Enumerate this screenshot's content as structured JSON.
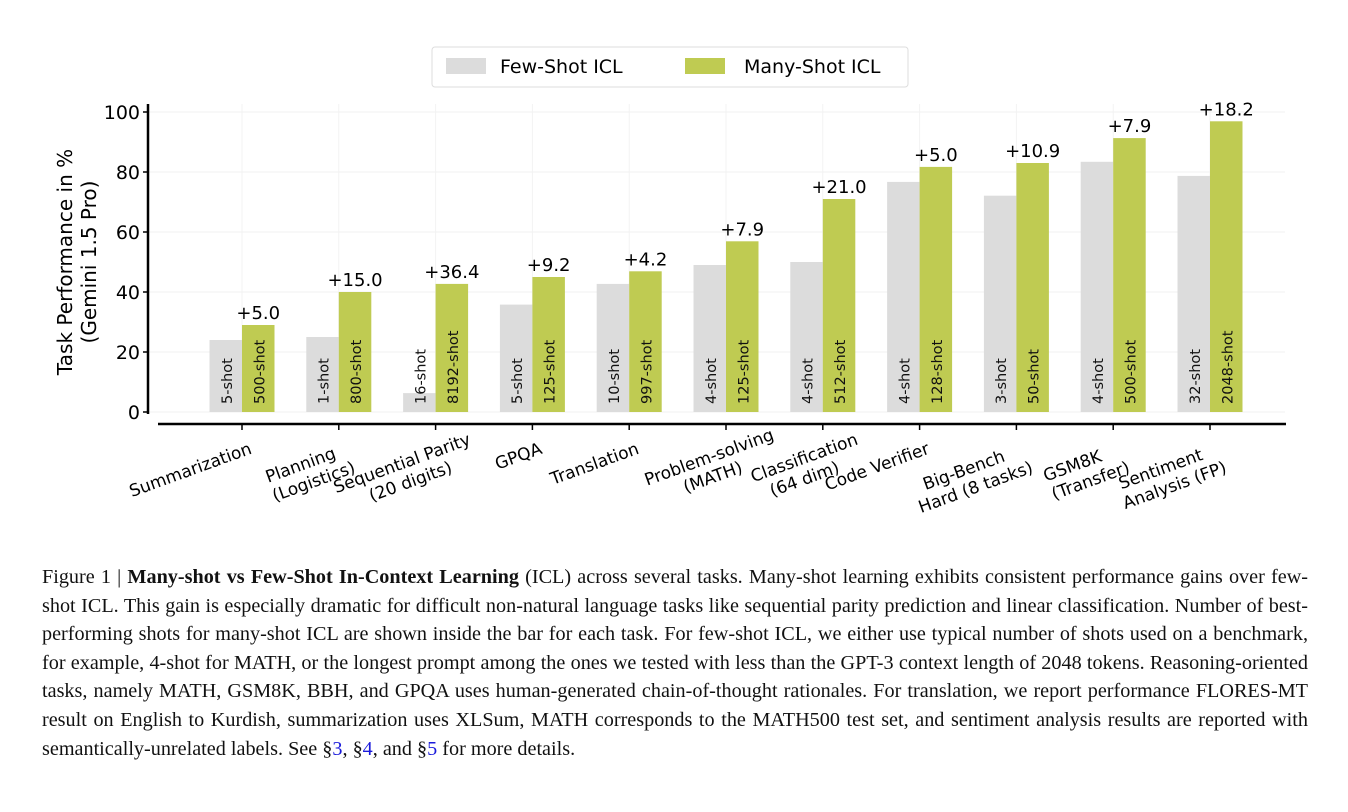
{
  "chart_data": {
    "type": "bar",
    "ylabel": [
      "Task Performance in %",
      "(Gemini 1.5 Pro)"
    ],
    "ylim": [
      0,
      100
    ],
    "yticks": [
      0,
      20,
      40,
      60,
      80,
      100
    ],
    "grid": true,
    "legend_placement": "top-center",
    "categories": [
      [
        "Summarization"
      ],
      [
        "Planning",
        "(Logistics)"
      ],
      [
        "Sequential Parity",
        "(20 digits)"
      ],
      [
        "GPQA"
      ],
      [
        "Translation"
      ],
      [
        "Problem-solving",
        "(MATH)"
      ],
      [
        "Classification",
        "(64 dim)"
      ],
      [
        "Code Verifier"
      ],
      [
        "Big-Bench",
        "Hard (8 tasks)"
      ],
      [
        "GSM8K",
        "(Transfer)"
      ],
      [
        "Sentiment",
        "Analysis (FP)"
      ]
    ],
    "series": [
      {
        "name": "Few-Shot ICL",
        "color": "#dcdcdc",
        "values": [
          24.0,
          25.0,
          6.3,
          35.8,
          42.7,
          49.0,
          50.0,
          76.7,
          72.1,
          83.4,
          78.7
        ],
        "bar_labels": [
          "5-shot",
          "1-shot",
          "16-shot",
          "5-shot",
          "10-shot",
          "4-shot",
          "4-shot",
          "4-shot",
          "3-shot",
          "4-shot",
          "32-shot"
        ]
      },
      {
        "name": "Many-Shot ICL",
        "color": "#bfcb52",
        "values": [
          29.0,
          40.0,
          42.7,
          45.0,
          46.9,
          56.9,
          71.0,
          81.7,
          83.0,
          91.3,
          96.9
        ],
        "bar_labels": [
          "500-shot",
          "800-shot",
          "8192-shot",
          "125-shot",
          "997-shot",
          "125-shot",
          "512-shot",
          "128-shot",
          "50-shot",
          "500-shot",
          "2048-shot"
        ]
      }
    ],
    "annotations": [
      "+5.0",
      "+15.0",
      "+36.4",
      "+9.2",
      "+4.2",
      "+7.9",
      "+21.0",
      "+5.0",
      "+10.9",
      "+7.9",
      "+18.2"
    ]
  },
  "caption": {
    "label": "Figure 1 | ",
    "title": "Many-shot vs Few-Shot In-Context Learning",
    "body": " (ICL) across several tasks. Many-shot learning exhibits consistent performance gains over few-shot ICL. This gain is especially dramatic for difficult non-natural language tasks like sequential parity prediction and linear classification. Number of best-performing shots for many-shot ICL are shown inside the bar for each task. For few-shot ICL, we either use typical number of shots used on a benchmark, for example, 4-shot for MATH, or the longest prompt among the ones we tested with less than the GPT-3 context length of 2048 tokens. Reasoning-oriented tasks, namely MATH, GSM8K, BBH, and GPQA uses human-generated chain-of-thought rationales. For translation, we report performance FLORES-MT result on English to Kurdish, summarization uses XLSum, MATH corresponds to the MATH500 test set, and sentiment analysis results are reported with semantically-unrelated labels. See §",
    "ref1": "3",
    "sep1": ", §",
    "ref2": "4",
    "sep2": ", and §",
    "ref3": "5",
    "end": " for more details."
  }
}
